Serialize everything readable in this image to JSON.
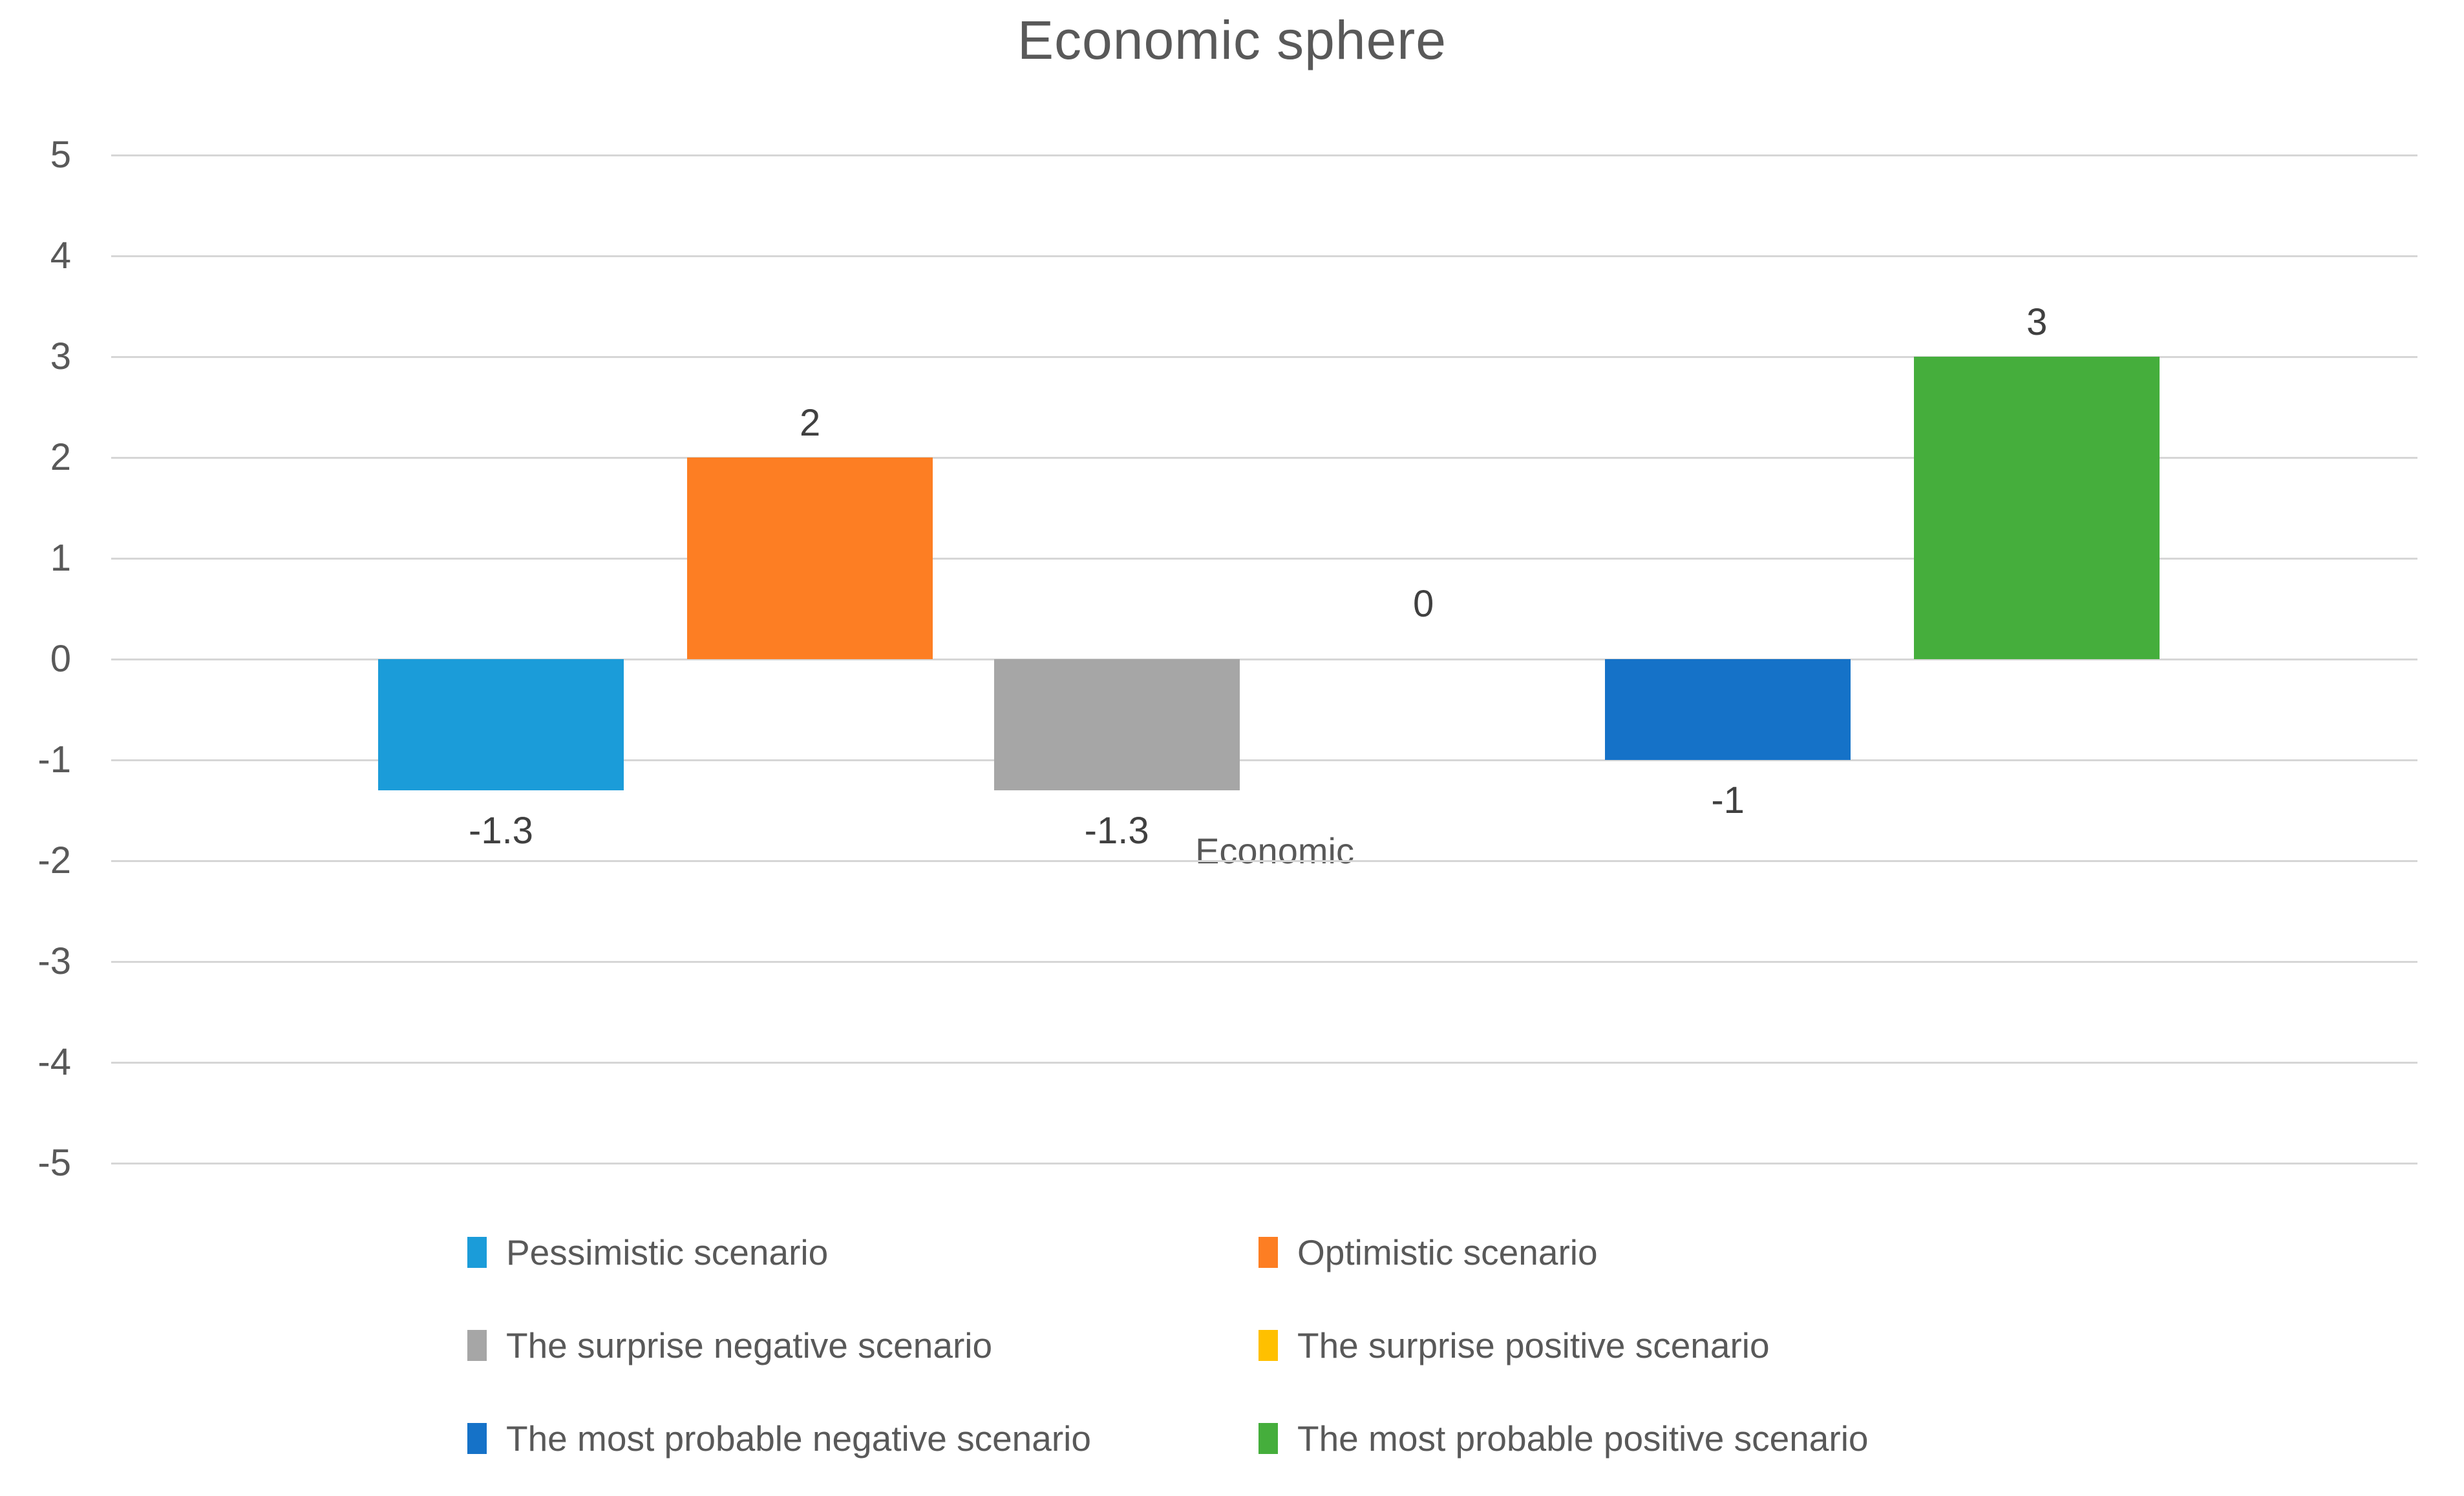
{
  "title": "Economic sphere",
  "chart_data": {
    "type": "bar",
    "title": "Economic sphere",
    "categories": [
      "Economic"
    ],
    "ylim": [
      -5,
      5
    ],
    "ytick_labels": [
      "5",
      "4",
      "3",
      "2",
      "1",
      "0",
      "-1",
      "-2",
      "-3",
      "-4",
      "-5"
    ],
    "grid": true,
    "legend_position": "bottom",
    "series": [
      {
        "name": "Pessimistic scenario",
        "values": [
          -1.3
        ],
        "label": "-1.3",
        "color": "#1B9CD9"
      },
      {
        "name": "Optimistic scenario",
        "values": [
          2
        ],
        "label": "2",
        "color": "#FD7E23"
      },
      {
        "name": "The surprise negative scenario",
        "values": [
          -1.3
        ],
        "label": "-1.3",
        "color": "#A6A6A6"
      },
      {
        "name": "The surprise positive scenario",
        "values": [
          0
        ],
        "label": "0",
        "color": "#FFC000"
      },
      {
        "name": "The most probable negative scenario",
        "values": [
          -1
        ],
        "label": "-1",
        "color": "#1572C8"
      },
      {
        "name": "The most probable positive scenario",
        "values": [
          3
        ],
        "label": "3",
        "color": "#45AE3C"
      }
    ]
  }
}
